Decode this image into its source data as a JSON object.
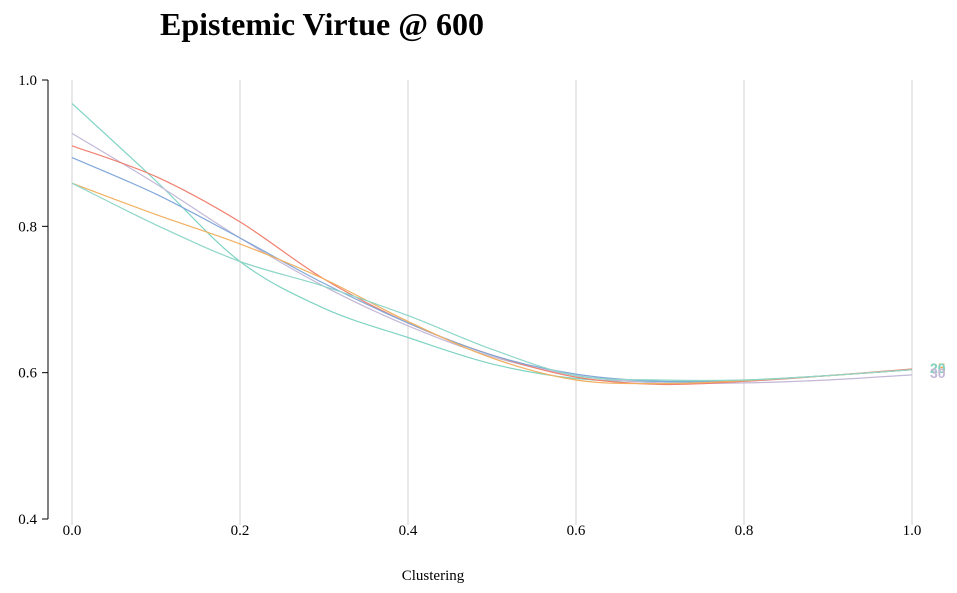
{
  "chart_data": {
    "type": "line",
    "title": "Epistemic Virtue @ 600",
    "xlabel": "Clustering",
    "ylabel": "",
    "xlim": [
      0,
      1
    ],
    "ylim": [
      0.4,
      1.0
    ],
    "x_ticks": [
      "0.0",
      "0.2",
      "0.4",
      "0.6",
      "0.8",
      "1.0"
    ],
    "y_ticks": [
      "0.4",
      "0.6",
      "0.8",
      "1.0"
    ],
    "grid": "vertical",
    "x": [
      0.0,
      0.1,
      0.2,
      0.3,
      0.4,
      0.5,
      0.6,
      0.7,
      0.8,
      0.9,
      1.0
    ],
    "series": [
      {
        "name": "",
        "end_label": "",
        "color": "#7fd3c3",
        "values": [
          0.968,
          0.862,
          0.752,
          0.688,
          0.648,
          0.612,
          0.592,
          0.588,
          0.59,
          0.596,
          0.604
        ]
      },
      {
        "name": "",
        "end_label": "",
        "color": "#c3b8d8",
        "values": [
          0.927,
          0.858,
          0.784,
          0.718,
          0.664,
          0.622,
          0.596,
          0.586,
          0.586,
          0.59,
          0.597
        ]
      },
      {
        "name": "",
        "end_label": "",
        "color": "#f08070",
        "values": [
          0.91,
          0.868,
          0.806,
          0.728,
          0.668,
          0.624,
          0.594,
          0.584,
          0.588,
          0.596,
          0.605
        ]
      },
      {
        "name": "",
        "end_label": "",
        "color": "#80a8d8",
        "values": [
          0.894,
          0.844,
          0.784,
          0.722,
          0.668,
          0.624,
          0.598,
          0.588,
          0.589,
          0.596,
          0.604
        ]
      },
      {
        "name": "",
        "end_label": "",
        "color": "#f0b060",
        "values": [
          0.859,
          0.816,
          0.776,
          0.728,
          0.67,
          0.62,
          0.59,
          0.585,
          0.589,
          0.596,
          0.604
        ]
      },
      {
        "name": "",
        "end_label": "",
        "color": "#8ed6c8",
        "values": [
          0.859,
          0.802,
          0.752,
          0.718,
          0.678,
          0.632,
          0.596,
          0.59,
          0.59,
          0.596,
          0.604
        ]
      }
    ],
    "end_labels": [
      "25",
      "20",
      "30"
    ]
  }
}
